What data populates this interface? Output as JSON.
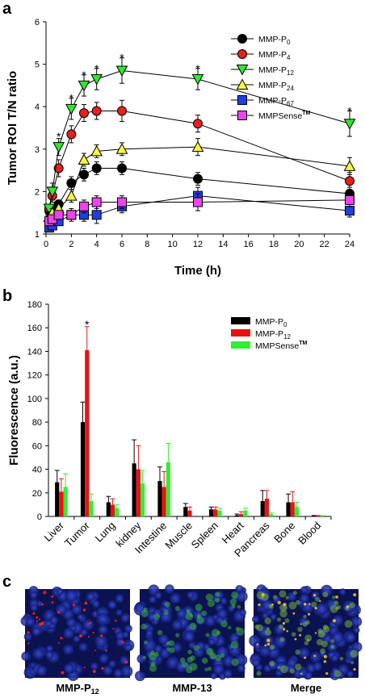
{
  "chart_data": [
    {
      "panel": "a",
      "type": "line",
      "xlabel": "Time (h)",
      "ylabel": "Tumor ROI T/N ratio",
      "xlim": [
        0,
        24
      ],
      "ylim": [
        1,
        6
      ],
      "xticks": [
        "0",
        "2",
        "4",
        "6",
        "8",
        "10",
        "12",
        "14",
        "16",
        "18",
        "20",
        "22",
        "24"
      ],
      "yticks": [
        "1",
        "2",
        "3",
        "4",
        "5",
        "6"
      ],
      "legend_position": "top-right",
      "series": [
        {
          "name": "MMP-P",
          "sub": "0",
          "sup": "",
          "marker": "circle",
          "color": "#000000",
          "x": [
            0.25,
            0.5,
            1,
            2,
            3,
            4,
            6,
            12,
            24
          ],
          "y": [
            1.55,
            1.6,
            1.7,
            2.2,
            2.4,
            2.55,
            2.55,
            2.3,
            1.95
          ],
          "err": [
            0.1,
            0.1,
            0.1,
            0.15,
            0.15,
            0.15,
            0.15,
            0.15,
            0.15
          ]
        },
        {
          "name": "MMP-P",
          "sub": "4",
          "sup": "",
          "marker": "circle",
          "color": "#e8201e",
          "x": [
            0.25,
            0.5,
            1,
            2,
            3,
            4,
            6,
            12,
            24
          ],
          "y": [
            1.6,
            1.9,
            2.55,
            3.35,
            3.85,
            3.9,
            3.9,
            3.6,
            2.25
          ],
          "err": [
            0.1,
            0.15,
            0.2,
            0.2,
            0.2,
            0.2,
            0.25,
            0.2,
            0.2
          ]
        },
        {
          "name": "MMP-P",
          "sub": "12",
          "sup": "",
          "marker": "triangle-down",
          "color": "#2ee82e",
          "x": [
            0.25,
            0.5,
            1,
            2,
            3,
            4,
            6,
            12,
            24
          ],
          "y": [
            1.6,
            2.0,
            3.05,
            3.95,
            4.5,
            4.65,
            4.85,
            4.65,
            3.6
          ],
          "err": [
            0.1,
            0.2,
            0.2,
            0.25,
            0.25,
            0.25,
            0.3,
            0.25,
            0.3
          ]
        },
        {
          "name": "MMP-P",
          "sub": "24",
          "sup": "",
          "marker": "triangle-up",
          "color": "#f5f540",
          "x": [
            0.25,
            0.5,
            1,
            2,
            3,
            4,
            6,
            12,
            24
          ],
          "y": [
            1.4,
            1.5,
            1.6,
            1.9,
            2.75,
            2.95,
            3.0,
            3.05,
            2.6
          ],
          "err": [
            0.1,
            0.1,
            0.1,
            0.15,
            0.15,
            0.15,
            0.15,
            0.2,
            0.2
          ]
        },
        {
          "name": "MMP-P",
          "sub": "67",
          "sup": "",
          "marker": "square",
          "color": "#1f3fe0",
          "x": [
            0.25,
            0.5,
            1,
            2,
            3,
            4,
            6,
            12,
            24
          ],
          "y": [
            1.15,
            1.2,
            1.3,
            1.45,
            1.45,
            1.45,
            1.65,
            1.9,
            1.55
          ],
          "err": [
            0.1,
            0.1,
            0.1,
            0.15,
            0.15,
            0.2,
            0.15,
            0.2,
            0.15
          ]
        },
        {
          "name": "MMPSense",
          "sub": "",
          "sup": "TM",
          "marker": "square",
          "color": "#ee44ee",
          "x": [
            0.25,
            0.5,
            1,
            2,
            3,
            4,
            6,
            12,
            24
          ],
          "y": [
            1.3,
            1.35,
            1.45,
            1.45,
            1.65,
            1.75,
            1.75,
            1.75,
            1.8
          ],
          "err": [
            0.1,
            0.1,
            0.1,
            0.1,
            0.15,
            0.15,
            0.15,
            0.2,
            0.15
          ]
        }
      ],
      "annotations": [
        {
          "text": "*",
          "x": 1,
          "y": 3.3
        },
        {
          "text": "*",
          "x": 2,
          "y": 4.2
        },
        {
          "text": "*",
          "x": 3,
          "y": 4.75
        },
        {
          "text": "*",
          "x": 4,
          "y": 4.9
        },
        {
          "text": "*",
          "x": 6,
          "y": 5.15
        },
        {
          "text": "*",
          "x": 12,
          "y": 4.9
        },
        {
          "text": "*",
          "x": 24,
          "y": 3.9
        }
      ]
    },
    {
      "panel": "b",
      "type": "bar",
      "ylabel": "Fluorescence (a.u.)",
      "ylim": [
        0,
        180
      ],
      "yticks": [
        "0",
        "20",
        "40",
        "60",
        "80",
        "100",
        "120",
        "140",
        "160",
        "180"
      ],
      "legend_position": "top-right",
      "categories": [
        "Liver",
        "Tumor",
        "Lung",
        "kidney",
        "Intestine",
        "Muscle",
        "Spleen",
        "Heart",
        "Pancreas",
        "Bone",
        "Blood"
      ],
      "series": [
        {
          "name": "MMP-P",
          "sub": "0",
          "sup": "",
          "color": "#000000",
          "values": [
            29,
            80,
            12,
            45,
            30,
            8,
            6,
            1,
            13,
            12,
            0.5
          ],
          "err": [
            10,
            17,
            5,
            20,
            12,
            3,
            2,
            1,
            9,
            7,
            0.3
          ]
        },
        {
          "name": "MMP-P",
          "sub": "12",
          "sup": "",
          "color": "#ee1111",
          "values": [
            21,
            141,
            10,
            40,
            25,
            5,
            6,
            2,
            15,
            12,
            0.5
          ],
          "err": [
            11,
            20,
            5,
            20,
            13,
            3,
            2,
            2,
            7,
            9,
            0.3
          ]
        },
        {
          "name": "MMPSense",
          "sub": "",
          "sup": "TM",
          "color": "#33ee33",
          "values": [
            25,
            13,
            7,
            28,
            46,
            0,
            5,
            5,
            2,
            8,
            0.5
          ],
          "err": [
            11,
            6,
            3,
            11,
            16,
            0,
            2,
            2,
            1,
            4,
            0.3
          ]
        }
      ],
      "annotations": [
        {
          "text": "*",
          "category": "Tumor",
          "y": 163
        }
      ]
    }
  ],
  "panel_c": {
    "letter": "c",
    "images": [
      {
        "caption_main": "MMP-P",
        "caption_sub": "12"
      },
      {
        "caption_main": "MMP-13",
        "caption_sub": ""
      },
      {
        "caption_main": "Merge",
        "caption_sub": ""
      }
    ]
  },
  "labels": {
    "a": "a",
    "b": "b"
  }
}
